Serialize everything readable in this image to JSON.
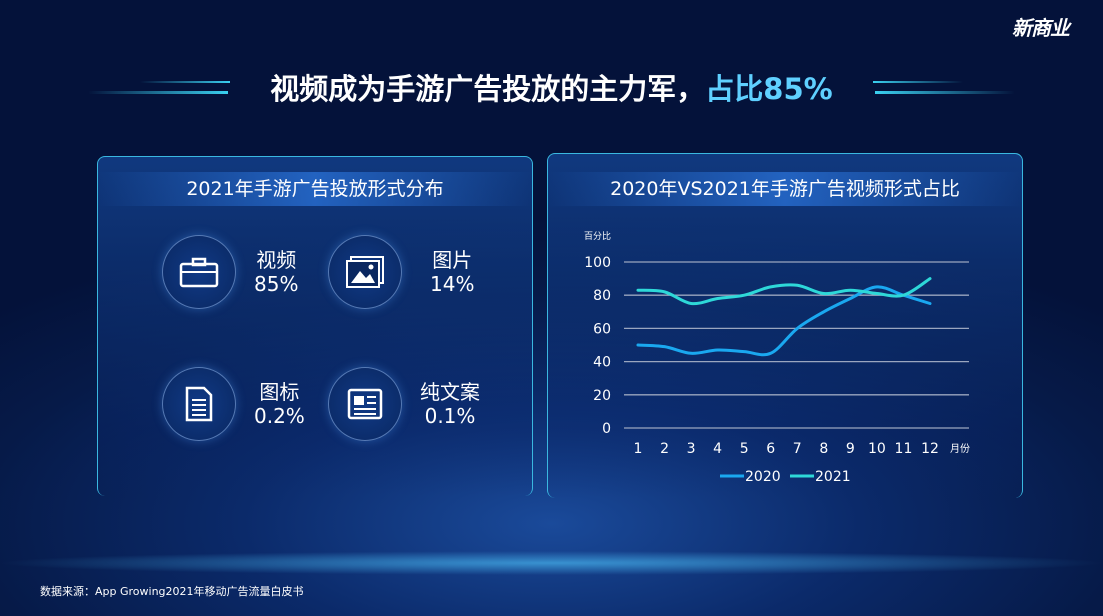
{
  "logo": "新商业",
  "title": {
    "main": "视频成为手游广告投放的主力军，",
    "highlight": "占比85%"
  },
  "left_panel": {
    "title": "2021年手游广告投放形式分布",
    "items": [
      {
        "label": "视频",
        "value": "85%",
        "icon": "briefcase-icon"
      },
      {
        "label": "图片",
        "value": "14%",
        "icon": "image-icon"
      },
      {
        "label": "图标",
        "value": "0.2%",
        "icon": "document-icon"
      },
      {
        "label": "纯文案",
        "value": "0.1%",
        "icon": "newspaper-icon"
      }
    ]
  },
  "right_panel": {
    "title": "2020年VS2021年手游广告视频形式占比"
  },
  "chart_data": {
    "type": "line",
    "ylabel": "百分比",
    "xlabel": "月份",
    "x": [
      "1",
      "2",
      "3",
      "4",
      "5",
      "6",
      "7",
      "8",
      "9",
      "10",
      "11",
      "12"
    ],
    "yticks": [
      "0",
      "20",
      "40",
      "60",
      "80",
      "100"
    ],
    "ylim": [
      0,
      100
    ],
    "grid": true,
    "legend": "bottom",
    "series": [
      {
        "name": "2020",
        "color": "#1aa8f0",
        "values": [
          50,
          49,
          45,
          47,
          46,
          45,
          60,
          70,
          78,
          85,
          80,
          75
        ]
      },
      {
        "name": "2021",
        "color": "#2ed8d8",
        "values": [
          83,
          82,
          75,
          78,
          80,
          85,
          86,
          81,
          83,
          81,
          80,
          90
        ]
      }
    ]
  },
  "footer": "数据来源：App Growing2021年移动广告流量白皮书"
}
